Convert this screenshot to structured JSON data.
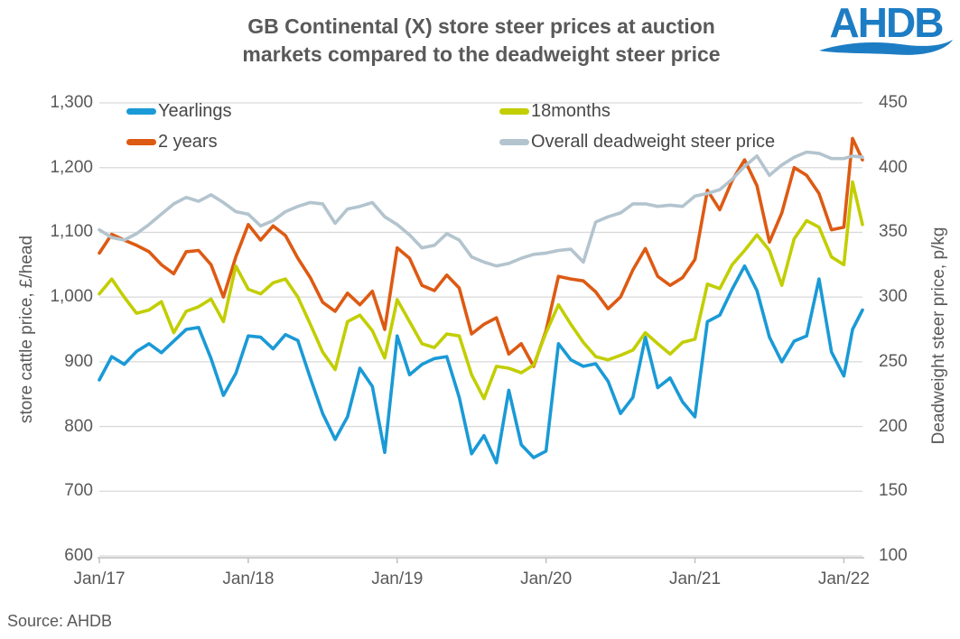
{
  "title": {
    "line1": "GB Continental (X) store steer prices at auction",
    "line2": "markets compared to the deadweight steer price"
  },
  "logo": {
    "text": "AHDB",
    "color": "#1d7dc4"
  },
  "source": "Source: AHDB",
  "legend": {
    "items": [
      {
        "label": "Yearlings",
        "color": "#1a9ad6"
      },
      {
        "label": "2 years",
        "color": "#dd5a13"
      },
      {
        "label": "18months",
        "color": "#c2ce00"
      },
      {
        "label": "Overall deadweight steer price",
        "color": "#b3c4ce"
      }
    ]
  },
  "axes": {
    "left": {
      "title": "store cattle price, £/head",
      "labels": [
        "1,300",
        "1,200",
        "1,100",
        "1,000",
        "900",
        "800",
        "700",
        "600"
      ]
    },
    "right": {
      "title": "Deadweight steer price, p/kg",
      "labels": [
        "450",
        "400",
        "350",
        "300",
        "250",
        "200",
        "150",
        "100"
      ]
    },
    "x": {
      "labels": [
        "Jan/17",
        "Jan/18",
        "Jan/19",
        "Jan/20",
        "Jan/21",
        "Jan/22"
      ]
    }
  },
  "colors": {
    "gridline": "#d9d9d9",
    "axis_line": "#bfbfbf",
    "axis_text": "#595959",
    "title_text": "#595959",
    "legend_text": "#474747"
  },
  "chart_data": {
    "type": "line",
    "title": "GB Continental (X) store steer prices at auction markets compared to the deadweight steer price",
    "x_unit": "months since Jan 2017 (monthly estimates from weekly data)",
    "x": [
      0,
      1,
      2,
      3,
      4,
      5,
      6,
      7,
      8,
      9,
      10,
      11,
      12,
      13,
      14,
      15,
      16,
      17,
      18,
      19,
      20,
      21,
      22,
      23,
      24,
      25,
      26,
      27,
      28,
      29,
      30,
      31,
      32,
      33,
      34,
      35,
      36,
      37,
      38,
      39,
      40,
      41,
      42,
      43,
      44,
      45,
      46,
      47,
      48,
      49,
      50,
      51,
      52,
      53,
      54,
      55,
      56,
      57,
      58,
      59,
      60,
      60.7,
      61.5
    ],
    "x_ticks": [
      {
        "x": 0,
        "label": "Jan/17"
      },
      {
        "x": 12,
        "label": "Jan/18"
      },
      {
        "x": 24,
        "label": "Jan/19"
      },
      {
        "x": 36,
        "label": "Jan/20"
      },
      {
        "x": 48,
        "label": "Jan/21"
      },
      {
        "x": 60,
        "label": "Jan/22"
      }
    ],
    "ylim_left": [
      600,
      1300
    ],
    "ylim_right": [
      100,
      450
    ],
    "ylabel_left": "store cattle price, £/head",
    "ylabel_right": "Deadweight steer price, p/kg",
    "grid": true,
    "legend_position": "top-left two-column inside plot",
    "series": [
      {
        "name": "Yearlings",
        "axis": "left",
        "unit": "£/head",
        "color": "#1a9ad6",
        "values": [
          872,
          908,
          896,
          916,
          928,
          914,
          932,
          950,
          953,
          905,
          848,
          882,
          940,
          938,
          920,
          942,
          933,
          875,
          820,
          780,
          815,
          890,
          862,
          760,
          940,
          880,
          896,
          905,
          908,
          845,
          758,
          786,
          744,
          856,
          772,
          752,
          762,
          928,
          903,
          893,
          897,
          870,
          820,
          845,
          938,
          860,
          875,
          838,
          815,
          962,
          972,
          1012,
          1048,
          1010,
          938,
          900,
          932,
          940,
          1028,
          915,
          878,
          950,
          980
        ]
      },
      {
        "name": "2 years",
        "axis": "left",
        "unit": "£/head",
        "color": "#dd5a13",
        "values": [
          1068,
          1097,
          1088,
          1080,
          1070,
          1050,
          1036,
          1070,
          1072,
          1050,
          1000,
          1062,
          1112,
          1088,
          1110,
          1095,
          1060,
          1030,
          992,
          978,
          1006,
          988,
          1009,
          950,
          1076,
          1060,
          1018,
          1010,
          1034,
          1014,
          943,
          958,
          968,
          912,
          928,
          893,
          948,
          1032,
          1028,
          1025,
          1008,
          982,
          1000,
          1042,
          1075,
          1032,
          1018,
          1030,
          1058,
          1165,
          1135,
          1180,
          1212,
          1172,
          1085,
          1130,
          1200,
          1188,
          1160,
          1104,
          1108,
          1245,
          1212
        ]
      },
      {
        "name": "18months",
        "axis": "left",
        "unit": "£/head",
        "color": "#c2ce00",
        "values": [
          1005,
          1028,
          1000,
          975,
          980,
          993,
          945,
          978,
          985,
          997,
          962,
          1048,
          1012,
          1005,
          1022,
          1028,
          1000,
          958,
          915,
          888,
          962,
          972,
          948,
          906,
          996,
          962,
          928,
          922,
          943,
          940,
          880,
          843,
          893,
          890,
          883,
          895,
          945,
          988,
          958,
          930,
          908,
          903,
          910,
          918,
          945,
          928,
          912,
          930,
          935,
          1020,
          1013,
          1050,
          1072,
          1096,
          1072,
          1018,
          1090,
          1118,
          1108,
          1062,
          1050,
          1178,
          1112
        ]
      },
      {
        "name": "Overall deadweight steer price",
        "axis": "right",
        "unit": "p/kg",
        "color": "#b3c4ce",
        "values": [
          352,
          346,
          344,
          349,
          356,
          364,
          372,
          377,
          374,
          379,
          373,
          366,
          364,
          355,
          359,
          366,
          370,
          373,
          372,
          357,
          368,
          370,
          373,
          362,
          356,
          348,
          338,
          340,
          349,
          344,
          331,
          327,
          324,
          326,
          330,
          333,
          334,
          336,
          337,
          327,
          358,
          362,
          365,
          372,
          372,
          370,
          371,
          370,
          378,
          380,
          383,
          391,
          401,
          409,
          394,
          402,
          408,
          412,
          411,
          407,
          407,
          409,
          408
        ]
      }
    ]
  }
}
